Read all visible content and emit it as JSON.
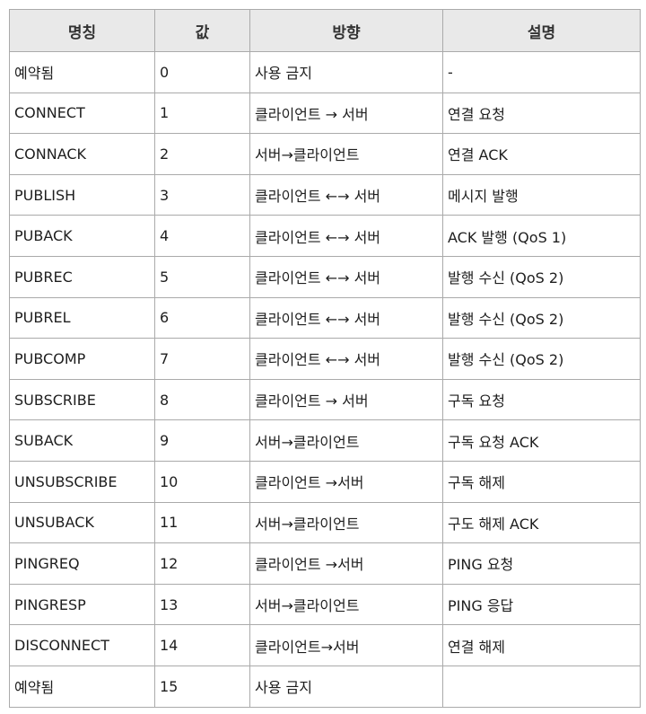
{
  "colors": {
    "header_bg": "#e9e9e9",
    "border": "#aaaaaa",
    "text": "#1e1e1e"
  },
  "table": {
    "headers": [
      "명칭",
      "값",
      "방향",
      "설명"
    ],
    "rows": [
      {
        "name": "예약됨",
        "value": "0",
        "direction": "사용 금지",
        "description": "-"
      },
      {
        "name": "CONNECT",
        "value": "1",
        "direction": "클라이언트 → 서버",
        "description": "연결 요청"
      },
      {
        "name": "CONNACK",
        "value": "2",
        "direction": "서버→클라이언트",
        "description": "연결 ACK"
      },
      {
        "name": "PUBLISH",
        "value": "3",
        "direction": "클라이언트 ←→ 서버",
        "description": "메시지 발행"
      },
      {
        "name": "PUBACK",
        "value": "4",
        "direction": "클라이언트 ←→ 서버",
        "description": "ACK 발행 (QoS 1)"
      },
      {
        "name": "PUBREC",
        "value": "5",
        "direction": "클라이언트 ←→ 서버",
        "description": "발행 수신 (QoS 2)"
      },
      {
        "name": "PUBREL",
        "value": "6",
        "direction": "클라이언트 ←→ 서버",
        "description": "발행 수신 (QoS 2)"
      },
      {
        "name": "PUBCOMP",
        "value": "7",
        "direction": "클라이언트 ←→ 서버",
        "description": "발행 수신 (QoS 2)"
      },
      {
        "name": "SUBSCRIBE",
        "value": "8",
        "direction": "클라이언트 → 서버",
        "description": "구독 요청"
      },
      {
        "name": "SUBACK",
        "value": "9",
        "direction": "서버→클라이언트",
        "description": "구독 요청 ACK"
      },
      {
        "name": "UNSUBSCRIBE",
        "value": "10",
        "direction": "클라이언트 →서버",
        "description": "구독 해제"
      },
      {
        "name": "UNSUBACK",
        "value": "11",
        "direction": "서버→클라이언트",
        "description": "구도 해제 ACK"
      },
      {
        "name": "PINGREQ",
        "value": "12",
        "direction": "클라이언트 →서버",
        "description": "PING 요청"
      },
      {
        "name": "PINGRESP",
        "value": "13",
        "direction": "서버→클라이언트",
        "description": "PING 응답"
      },
      {
        "name": "DISCONNECT",
        "value": "14",
        "direction": "클라이언트→서버",
        "description": "연결 해제"
      },
      {
        "name": "예약됨",
        "value": "15",
        "direction": "사용 금지",
        "description": ""
      }
    ]
  }
}
